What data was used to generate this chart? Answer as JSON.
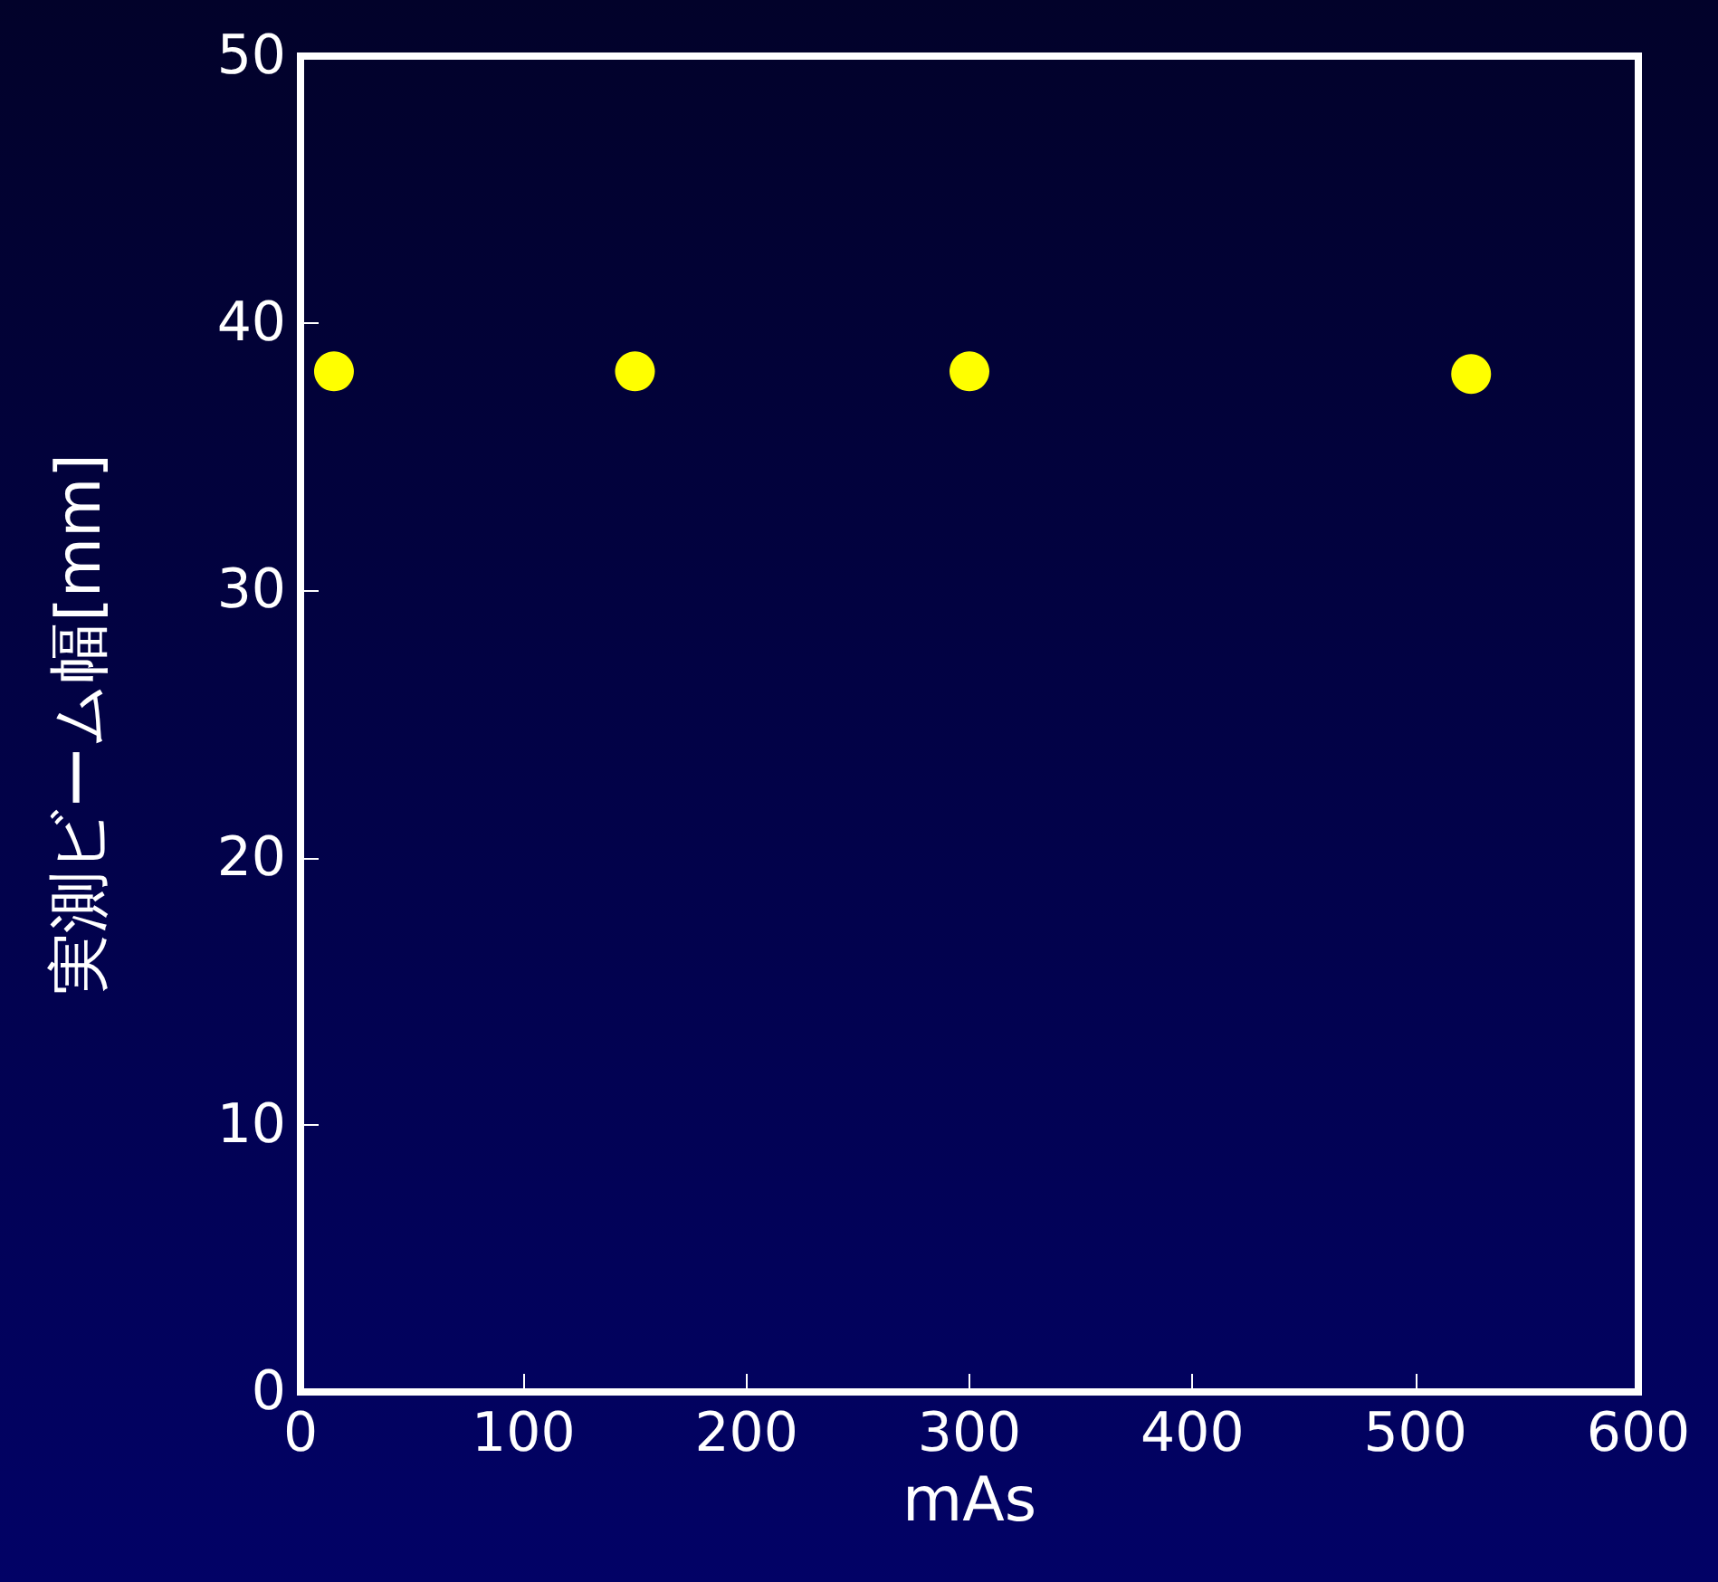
{
  "chart_data": {
    "type": "scatter",
    "xlabel": "mAs",
    "ylabel": "実測ビーム幅[mm]",
    "x": [
      15,
      150,
      300,
      525
    ],
    "series": [
      {
        "color": "#ffff00",
        "values": [
          38.2,
          38.2,
          38.2,
          38.1
        ]
      }
    ],
    "xlim": [
      0,
      600
    ],
    "xticks": [
      0,
      100,
      200,
      300,
      400,
      500,
      600
    ],
    "ylim": [
      0,
      50
    ],
    "yticks": [
      0,
      10,
      20,
      30,
      40,
      50
    ],
    "marker": "circle"
  }
}
